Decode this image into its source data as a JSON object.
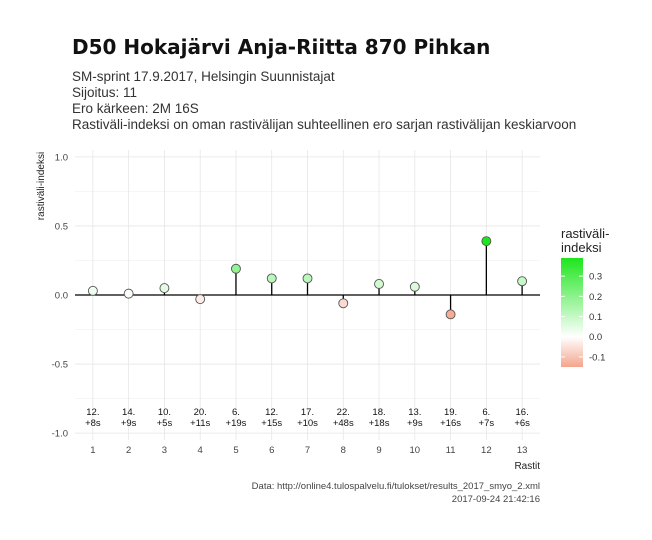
{
  "title": "D50 Hokajärvi Anja-Riitta 870 Pihkan",
  "subtitle_lines": [
    "SM-sprint 17.9.2017, Helsingin Suunnistajat",
    "Sijoitus: 11",
    "Ero kärkeen: 2M 16S",
    "Rastiväli-indeksi on oman rastivälijan suhteellinen ero sarjan rastivälijan keskiarvoon"
  ],
  "caption_lines": [
    "Data: http://online4.tulospalvelu.fi/tulokset/results_2017_smyo_2.xml",
    "2017-09-24 21:42:16"
  ],
  "colors": {
    "low": "#f4a58c",
    "mid": "#ffffff",
    "high": "#1ee61e",
    "grid": "#e6e6e6",
    "stem": "#000000",
    "point_stroke": "#555555"
  },
  "chart_data": {
    "type": "scatter",
    "style": "lollipop",
    "xlabel": "Rastit",
    "ylabel": "rastiväli-indeksi",
    "x": [
      1,
      2,
      3,
      4,
      5,
      6,
      7,
      8,
      9,
      10,
      11,
      12,
      13
    ],
    "values": [
      0.03,
      0.01,
      0.05,
      -0.03,
      0.19,
      0.12,
      0.12,
      -0.06,
      0.08,
      0.06,
      -0.14,
      0.39,
      0.1
    ],
    "rank_labels": [
      "12.",
      "14.",
      "10.",
      "20.",
      "6.",
      "12.",
      "17.",
      "22.",
      "18.",
      "13.",
      "19.",
      "6.",
      "16."
    ],
    "diff_labels": [
      "+8s",
      "+9s",
      "+5s",
      "+11s",
      "+19s",
      "+15s",
      "+10s",
      "+48s",
      "+18s",
      "+9s",
      "+16s",
      "+7s",
      "+6s"
    ],
    "x_ticks": [
      "1",
      "2",
      "3",
      "4",
      "5",
      "6",
      "7",
      "8",
      "9",
      "10",
      "11",
      "12",
      "13"
    ],
    "y_ticks": [
      "1.0",
      "0.5",
      "0.0",
      "-0.5",
      "-1.0"
    ],
    "y_tick_values": [
      1.0,
      0.5,
      0.0,
      -0.5,
      -1.0
    ],
    "ylim": [
      -1.05,
      1.05
    ],
    "xlim": [
      0.5,
      13.5
    ],
    "grid": true,
    "legend": {
      "title_lines": [
        "rastiväli-",
        "indeksi"
      ],
      "ticks": [
        "0.3",
        "0.2",
        "0.1",
        "0.0",
        "-0.1"
      ],
      "tick_values": [
        0.3,
        0.2,
        0.1,
        0.0,
        -0.1
      ],
      "range": [
        -0.15,
        0.39
      ],
      "placement": "right"
    }
  }
}
